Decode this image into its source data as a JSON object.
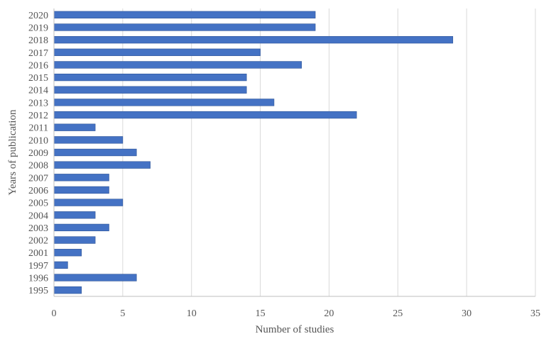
{
  "chart_data": {
    "type": "bar",
    "orientation": "horizontal",
    "categories": [
      "2020",
      "2019",
      "2018",
      "2017",
      "2016",
      "2015",
      "2014",
      "2013",
      "2012",
      "2011",
      "2010",
      "2009",
      "2008",
      "2007",
      "2006",
      "2005",
      "2004",
      "2003",
      "2002",
      "2001",
      "1997",
      "1996",
      "1995"
    ],
    "values": [
      19,
      19,
      29,
      15,
      18,
      14,
      14,
      16,
      22,
      3,
      5,
      6,
      7,
      4,
      4,
      5,
      3,
      4,
      3,
      2,
      1,
      6,
      2
    ],
    "xlabel": "Number of studies",
    "ylabel": "Years of publication",
    "xlim": [
      0,
      35
    ],
    "xticks": [
      0,
      5,
      10,
      15,
      20,
      25,
      30,
      35
    ],
    "grid": "vertical",
    "legend": "none",
    "colors": {
      "bar": "#4472C4",
      "bar_edge": "#2F5597",
      "grid": "#D9D9D9",
      "axis": "#BFBFBF"
    }
  }
}
